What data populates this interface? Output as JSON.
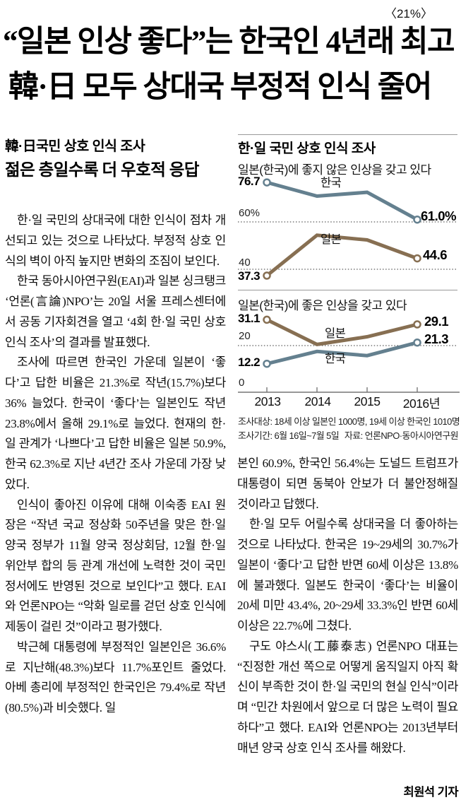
{
  "page": {
    "issue_mark": "〈21%〉"
  },
  "headline": {
    "line1": "“일본 인상 좋다”는 한국인 4년래 최고",
    "line2": "韓·日 모두 상대국 부정적 인식 줄어"
  },
  "left_column": {
    "subhead1": "韓·日국민 상호 인식 조사",
    "subhead2": "젊은 층일수록 더 우호적 응답",
    "paragraphs": [
      "한·일 국민의 상대국에 대한 인식이 점차 개선되고 있는 것으로 나타났다. 부정적 상호 인식의 벽이 아직 높지만 변화의 조짐이 보인다.",
      "한국 동아시아연구원(EAI)과 일본 싱크탱크 ‘언론(言論)NPO’는 20일 서울 프레스센터에서 공동 기자회견을 열고 ‘4회 한·일 국민 상호 인식 조사’의 결과를 발표했다.",
      "조사에 따르면 한국인 가운데 일본이 ‘좋다’고 답한 비율은 21.3%로 작년(15.7%)보다 36% 늘었다. 한국이 ‘좋다’는 일본인도 작년 23.8%에서 올해 29.1%로 늘었다. 현재의 한·일 관계가 ‘나쁘다’고 답한 비율은 일본 50.9%, 한국 62.3%로 지난 4년간 조사 가운데 가장 낮았다.",
      "인식이 좋아진 이유에 대해 이숙종 EAI 원장은 “작년 국교 정상화 50주년을 맞은 한·일 양국 정부가 11월 양국 정상회담, 12월 한·일 위안부 합의 등 관계 개선에 노력한 것이 국민 정서에도 반영된 것으로 보인다”고 했다. EAI와 언론NPO는 “악화 일로를 걷던 상호 인식에 제동이 걸린 것”이라고 평가했다.",
      "박근혜 대통령에 부정적인 일본인은 36.6%로 지난해(48.3%)보다 11.7%포인트 줄었다. 아베 총리에 부정적인 한국인은 79.4%로 작년(80.5%)과 비슷했다. 일"
    ]
  },
  "right_column": {
    "paragraphs": [
      "본인 60.9%, 한국인 56.4%는 도널드 트럼프가 대통령이 되면 동북아 안보가 더 불안정해질 것이라고 답했다.",
      "한·일 모두 어릴수록 상대국을 더 좋아하는 것으로 나타났다. 한국은 19~29세의 30.7%가 일본이 ‘좋다’고 답한 반면 60세 이상은 13.8%에 불과했다. 일본도 한국이 ‘좋다’는 비율이 20세 미만 43.4%, 20~29세 33.3%인 반면 60세 이상은 22.7%에 그쳤다.",
      "구도 야스시(工藤泰志) 언론NPO 대표는 “진정한 개선 쪽으로 어떻게 움직일지 아직 확신이 부족한 것이 한·일 국민의 현실 인식”이라며 “민간 차원에서 앞으로 더 많은 노력이 필요하다”고 했다. EAI와 언론NPO는 2013년부터 매년 양국 상호 인식 조사를 해왔다."
    ],
    "byline": "최원석 기자"
  },
  "infographic": {
    "title": "한·일 국민 상호 인식 조사",
    "footnote1": "조사대상: 18세 이상 일본인 1000명, 19세 이상 한국인 1010명",
    "footnote2_left": "조사기간: 6월 16일~7월 5일",
    "footnote2_right": "자료: 언론NPO·동아시아연구원",
    "colors": {
      "korea": "#64808F",
      "japan": "#876F52",
      "grid": "#333333",
      "rule": "#999999",
      "axis": "#777777"
    }
  },
  "chart_data": [
    {
      "type": "line",
      "title": "일본(한국)에 좋지 않은 인상을 갖고 있다",
      "x": [
        "2013",
        "2014",
        "2015",
        "2016"
      ],
      "series": [
        {
          "name": "한국",
          "color_key": "korea",
          "values": [
            76.7,
            70.9,
            72.5,
            61.0
          ],
          "start_label": "76.7",
          "end_label": "61.0%"
        },
        {
          "name": "일본",
          "color_key": "japan",
          "values": [
            37.3,
            54.4,
            52.4,
            44.6
          ],
          "start_label": "37.3",
          "end_label": "44.6"
        }
      ],
      "gridlines": [
        {
          "value": 60,
          "label": "60%"
        },
        {
          "value": 40,
          "label": "40"
        }
      ],
      "ylim": [
        30,
        80
      ],
      "legend_position": "inline"
    },
    {
      "type": "line",
      "title": "일본(한국)에 좋은 인상을 갖고 있다",
      "x": [
        "2013",
        "2014",
        "2015",
        "2016"
      ],
      "series": [
        {
          "name": "일본",
          "color_key": "japan",
          "values": [
            31.1,
            20.5,
            23.8,
            29.1
          ],
          "start_label": "31.1",
          "end_label": "29.1"
        },
        {
          "name": "한국",
          "color_key": "korea",
          "values": [
            12.2,
            17.5,
            15.7,
            21.3
          ],
          "start_label": "12.2",
          "end_label": "21.3"
        }
      ],
      "gridlines": [
        {
          "value": 20,
          "label": "20"
        }
      ],
      "baseline": {
        "value": 0,
        "label": "0"
      },
      "x_labels": [
        "2013",
        "2014",
        "2015",
        "2016년"
      ],
      "ylim": [
        0,
        35
      ],
      "legend_position": "inline"
    }
  ]
}
